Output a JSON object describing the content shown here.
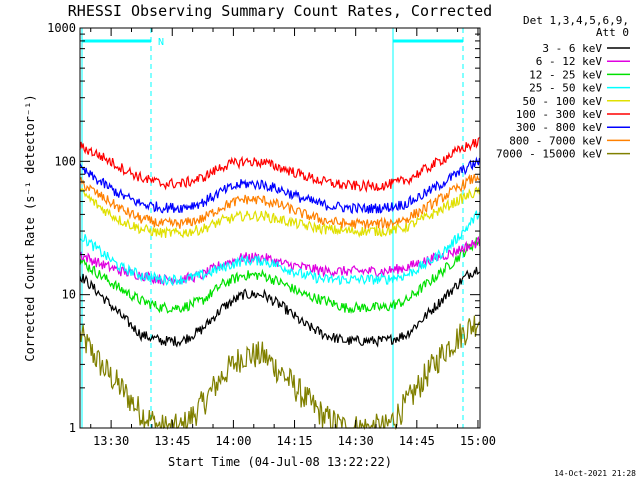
{
  "chart_data": {
    "type": "line",
    "title": "RHESSI Observing Summary Count Rates, Corrected",
    "xlabel": "Start Time (04-Jul-08 13:22:22)",
    "ylabel": "Corrected Count Rate (s⁻¹ detector⁻¹)",
    "y_scale": "log",
    "ylim": [
      1,
      1000
    ],
    "xlim": [
      "13:22:22",
      "15:00:30"
    ],
    "x_ticks": [
      "13:30",
      "13:45",
      "14:00",
      "14:15",
      "14:30",
      "14:45",
      "15:00"
    ],
    "y_ticks": [
      "1",
      "10",
      "100",
      "1000"
    ],
    "legend_header": [
      "Det 1,3,4,5,6,9,",
      "Att 0"
    ],
    "legend_position": "right",
    "grid": false,
    "x_minutes": [
      0,
      5,
      10,
      15,
      20,
      25,
      30,
      35,
      40,
      45,
      50,
      55,
      60,
      65,
      70,
      75,
      80,
      85,
      90,
      95,
      98
    ],
    "series": [
      {
        "name": "3 - 6 keV",
        "color": "#000000",
        "values": [
          14,
          10,
          7,
          5,
          4.5,
          4.5,
          5.5,
          8,
          10,
          10,
          8,
          6,
          5,
          4.5,
          4.5,
          4.5,
          5,
          7,
          10,
          14,
          16
        ]
      },
      {
        "name": "6 - 12 keV",
        "color": "#e000e0",
        "values": [
          20,
          17,
          15,
          14,
          13,
          13,
          14,
          17,
          19,
          19,
          17,
          16,
          15,
          15,
          15,
          15,
          16,
          18,
          20,
          23,
          25
        ]
      },
      {
        "name": "12 - 25 keV",
        "color": "#00e000",
        "values": [
          18,
          14,
          11,
          9,
          8,
          8,
          9,
          12,
          14,
          14,
          12,
          10,
          9,
          8,
          8,
          8,
          9,
          12,
          16,
          22,
          26
        ]
      },
      {
        "name": "25 - 50 keV",
        "color": "#00ffff",
        "values": [
          28,
          21,
          16,
          14,
          13,
          13,
          14,
          16,
          18,
          18,
          16,
          14,
          13,
          13,
          13,
          13,
          14,
          17,
          22,
          32,
          42
        ]
      },
      {
        "name": "50 - 100 keV",
        "color": "#e0e000",
        "values": [
          60,
          45,
          36,
          31,
          29,
          29,
          31,
          36,
          39,
          39,
          36,
          33,
          31,
          30,
          30,
          30,
          32,
          38,
          46,
          55,
          60
        ]
      },
      {
        "name": "100 - 300 keV",
        "color": "#ff0000",
        "values": [
          130,
          110,
          90,
          75,
          68,
          68,
          75,
          92,
          100,
          98,
          88,
          78,
          70,
          66,
          65,
          66,
          72,
          88,
          108,
          130,
          140
        ]
      },
      {
        "name": "300 - 800 keV",
        "color": "#0000ff",
        "values": [
          88,
          70,
          56,
          48,
          45,
          45,
          49,
          60,
          68,
          67,
          60,
          52,
          47,
          45,
          44,
          45,
          48,
          58,
          72,
          90,
          100
        ]
      },
      {
        "name": "800 - 7000 keV",
        "color": "#ff8000",
        "values": [
          70,
          55,
          44,
          37,
          34,
          34,
          37,
          46,
          52,
          51,
          46,
          40,
          36,
          34,
          34,
          34,
          37,
          45,
          56,
          70,
          78
        ]
      },
      {
        "name": "7000 - 15000 keV",
        "color": "#808000",
        "values": [
          5,
          3,
          2,
          1.3,
          1,
          1,
          1.5,
          2.5,
          3.5,
          3.5,
          2.5,
          1.7,
          1.2,
          1,
          1,
          1,
          1.5,
          2.5,
          4,
          5.5,
          6.5
        ]
      }
    ],
    "annotations": {
      "flag_label": "N"
    }
  },
  "footer": {
    "timestamp": "14-Oct-2021 21:28"
  }
}
